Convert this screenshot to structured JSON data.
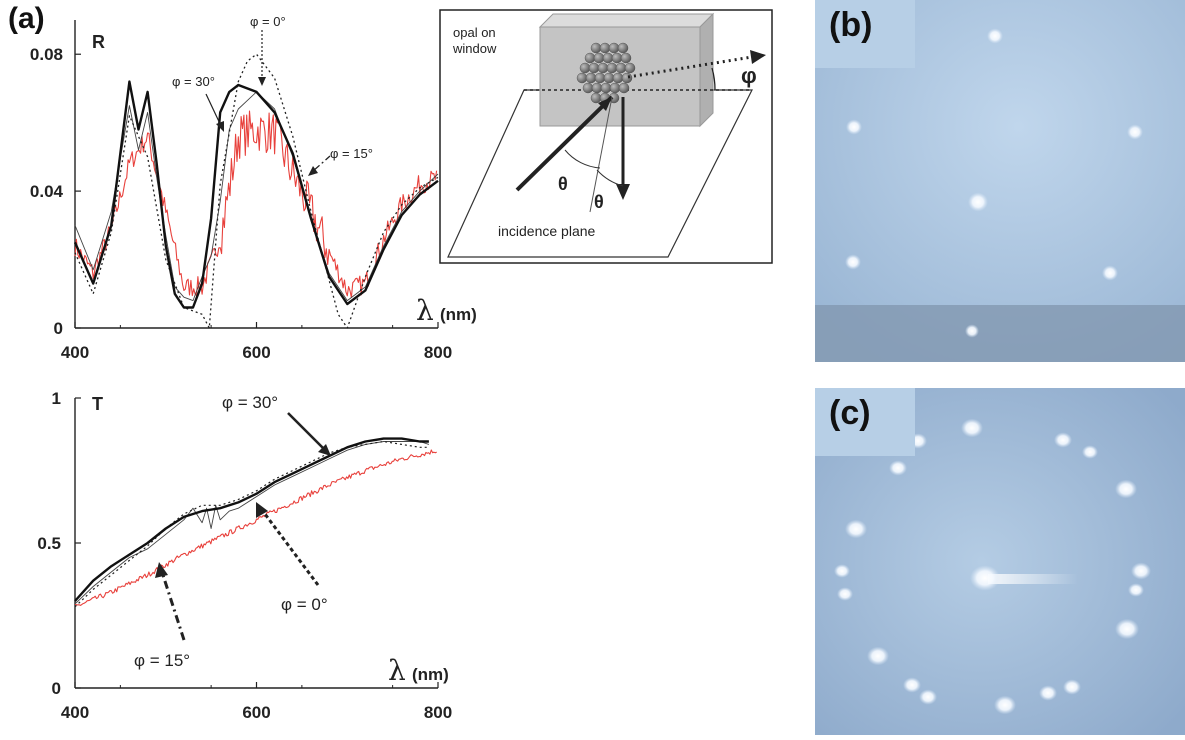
{
  "panels": {
    "a": "(a)",
    "b": "(b)",
    "c": "(c)"
  },
  "chart_data": [
    {
      "type": "line",
      "ylabel": "R",
      "xlabel": "λ (nm)",
      "xlabel_symbol": "λ",
      "xlabel_unit": "(nm)",
      "xlim": [
        400,
        800
      ],
      "ylim": [
        0,
        0.09
      ],
      "xticks": [
        "400",
        "600",
        "800"
      ],
      "yticks": [
        "0",
        "0.04",
        "0.08"
      ],
      "xtick_values": [
        400,
        600,
        800
      ],
      "ytick_values": [
        0,
        0.04,
        0.08
      ],
      "annotations": [
        "φ = 0°",
        "φ = 30°",
        "φ = 15°"
      ],
      "series": [
        {
          "x": [
            400,
            420,
            440,
            460,
            470,
            480,
            490,
            500,
            510,
            520,
            530,
            540,
            550,
            560,
            570,
            580,
            600,
            620,
            640,
            660,
            680,
            700,
            720,
            740,
            760,
            780,
            800
          ],
          "y": [
            0.03,
            0.017,
            0.034,
            0.065,
            0.052,
            0.063,
            0.044,
            0.027,
            0.012,
            0.009,
            0.008,
            0.015,
            0.021,
            0.037,
            0.058,
            0.064,
            0.069,
            0.064,
            0.05,
            0.032,
            0.016,
            0.008,
            0.012,
            0.024,
            0.034,
            0.04,
            0.045
          ]
        },
        {
          "x": [
            400,
            420,
            440,
            460,
            470,
            480,
            490,
            500,
            510,
            520,
            530,
            540,
            550,
            560,
            570,
            580,
            600,
            620,
            640,
            660,
            680,
            700,
            720,
            740,
            760,
            780,
            800
          ],
          "y": [
            0.025,
            0.013,
            0.03,
            0.072,
            0.058,
            0.069,
            0.048,
            0.024,
            0.01,
            0.006,
            0.006,
            0.013,
            0.032,
            0.063,
            0.069,
            0.071,
            0.069,
            0.063,
            0.051,
            0.032,
            0.015,
            0.007,
            0.011,
            0.023,
            0.033,
            0.039,
            0.043
          ]
        },
        {
          "x": [
            400,
            420,
            440,
            460,
            480,
            500,
            520,
            540,
            548,
            560,
            580,
            590,
            600,
            620,
            640,
            660,
            680,
            690,
            700,
            720,
            740,
            760,
            780,
            800
          ],
          "y": [
            0.022,
            0.01,
            0.028,
            0.062,
            0.05,
            0.02,
            0.006,
            0.004,
            0.0,
            0.042,
            0.072,
            0.078,
            0.08,
            0.073,
            0.056,
            0.034,
            0.014,
            0.004,
            0.0,
            0.015,
            0.028,
            0.036,
            0.041,
            0.044
          ]
        },
        {
          "x": [
            400,
            420,
            440,
            460,
            480,
            500,
            520,
            540,
            560,
            580,
            600,
            620,
            640,
            660,
            680,
            700,
            720,
            740,
            760,
            780,
            800
          ],
          "y": [
            0.024,
            0.016,
            0.029,
            0.048,
            0.056,
            0.034,
            0.012,
            0.012,
            0.026,
            0.056,
            0.058,
            0.057,
            0.045,
            0.034,
            0.022,
            0.011,
            0.013,
            0.026,
            0.036,
            0.042,
            0.044
          ]
        }
      ]
    },
    {
      "type": "line",
      "ylabel": "T",
      "xlabel": "λ (nm)",
      "xlabel_symbol": "λ",
      "xlabel_unit": "(nm)",
      "xlim": [
        400,
        800
      ],
      "ylim": [
        0,
        1
      ],
      "xticks": [
        "400",
        "600",
        "800"
      ],
      "yticks": [
        "0",
        "0.5",
        "1"
      ],
      "xtick_values": [
        400,
        600,
        800
      ],
      "ytick_values": [
        0,
        0.5,
        1
      ],
      "annotations": [
        "φ = 30°",
        "φ = 0°",
        "φ = 15°"
      ],
      "series": [
        {
          "x": [
            400,
            420,
            440,
            460,
            480,
            500,
            520,
            530,
            540,
            545,
            550,
            555,
            560,
            570,
            580,
            600,
            620,
            640,
            660,
            680,
            700,
            720,
            740,
            760,
            780,
            790
          ],
          "y": [
            0.29,
            0.35,
            0.4,
            0.45,
            0.48,
            0.53,
            0.58,
            0.62,
            0.57,
            0.62,
            0.55,
            0.63,
            0.58,
            0.61,
            0.62,
            0.66,
            0.7,
            0.73,
            0.76,
            0.79,
            0.82,
            0.84,
            0.85,
            0.85,
            0.85,
            0.84
          ]
        },
        {
          "x": [
            400,
            420,
            440,
            460,
            480,
            500,
            520,
            540,
            560,
            580,
            600,
            620,
            640,
            660,
            680,
            700,
            720,
            740,
            760,
            780,
            790
          ],
          "y": [
            0.3,
            0.37,
            0.42,
            0.46,
            0.5,
            0.55,
            0.59,
            0.61,
            0.62,
            0.64,
            0.67,
            0.71,
            0.74,
            0.77,
            0.8,
            0.83,
            0.85,
            0.86,
            0.86,
            0.85,
            0.85
          ]
        },
        {
          "x": [
            400,
            420,
            440,
            460,
            480,
            500,
            520,
            540,
            560,
            580,
            600,
            620,
            640,
            660,
            680,
            700,
            720,
            740,
            760,
            780,
            790
          ],
          "y": [
            0.28,
            0.34,
            0.39,
            0.44,
            0.49,
            0.55,
            0.6,
            0.63,
            0.63,
            0.65,
            0.68,
            0.72,
            0.75,
            0.78,
            0.81,
            0.83,
            0.84,
            0.85,
            0.84,
            0.83,
            0.83
          ]
        },
        {
          "x": [
            400,
            440,
            480,
            520,
            560,
            600,
            640,
            680,
            720,
            760,
            800
          ],
          "y": [
            0.28,
            0.33,
            0.39,
            0.46,
            0.52,
            0.58,
            0.64,
            0.7,
            0.75,
            0.79,
            0.82
          ]
        }
      ]
    }
  ],
  "inset": {
    "labels": {
      "sample": "opal on window",
      "sample_line1": "opal on",
      "sample_line2": "window",
      "theta1": "θ",
      "theta2": "θ",
      "phi": "φ",
      "plane": "incidence plane"
    }
  },
  "colors": {
    "red_series": "#e8413c",
    "black_series": "#111111",
    "photo_bg_b": "#a9c3df",
    "photo_bg_c": "#9fb9d6",
    "spot": "#ffffff",
    "tag_bg": "#b7cfe6"
  }
}
